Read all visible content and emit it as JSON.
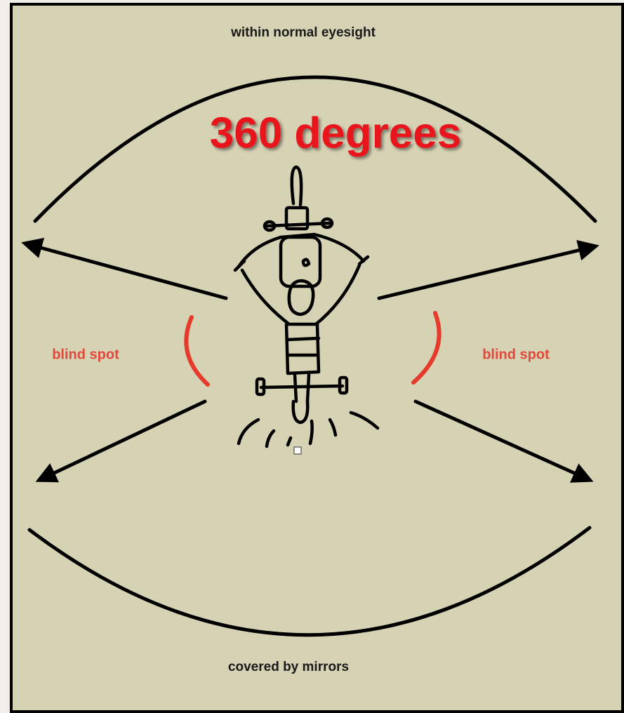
{
  "diagram": {
    "title": "360 degrees",
    "top_label": "within normal eyesight",
    "bottom_label": "covered by mirrors",
    "blind_spot_left": "blind spot",
    "blind_spot_right": "blind spot"
  }
}
